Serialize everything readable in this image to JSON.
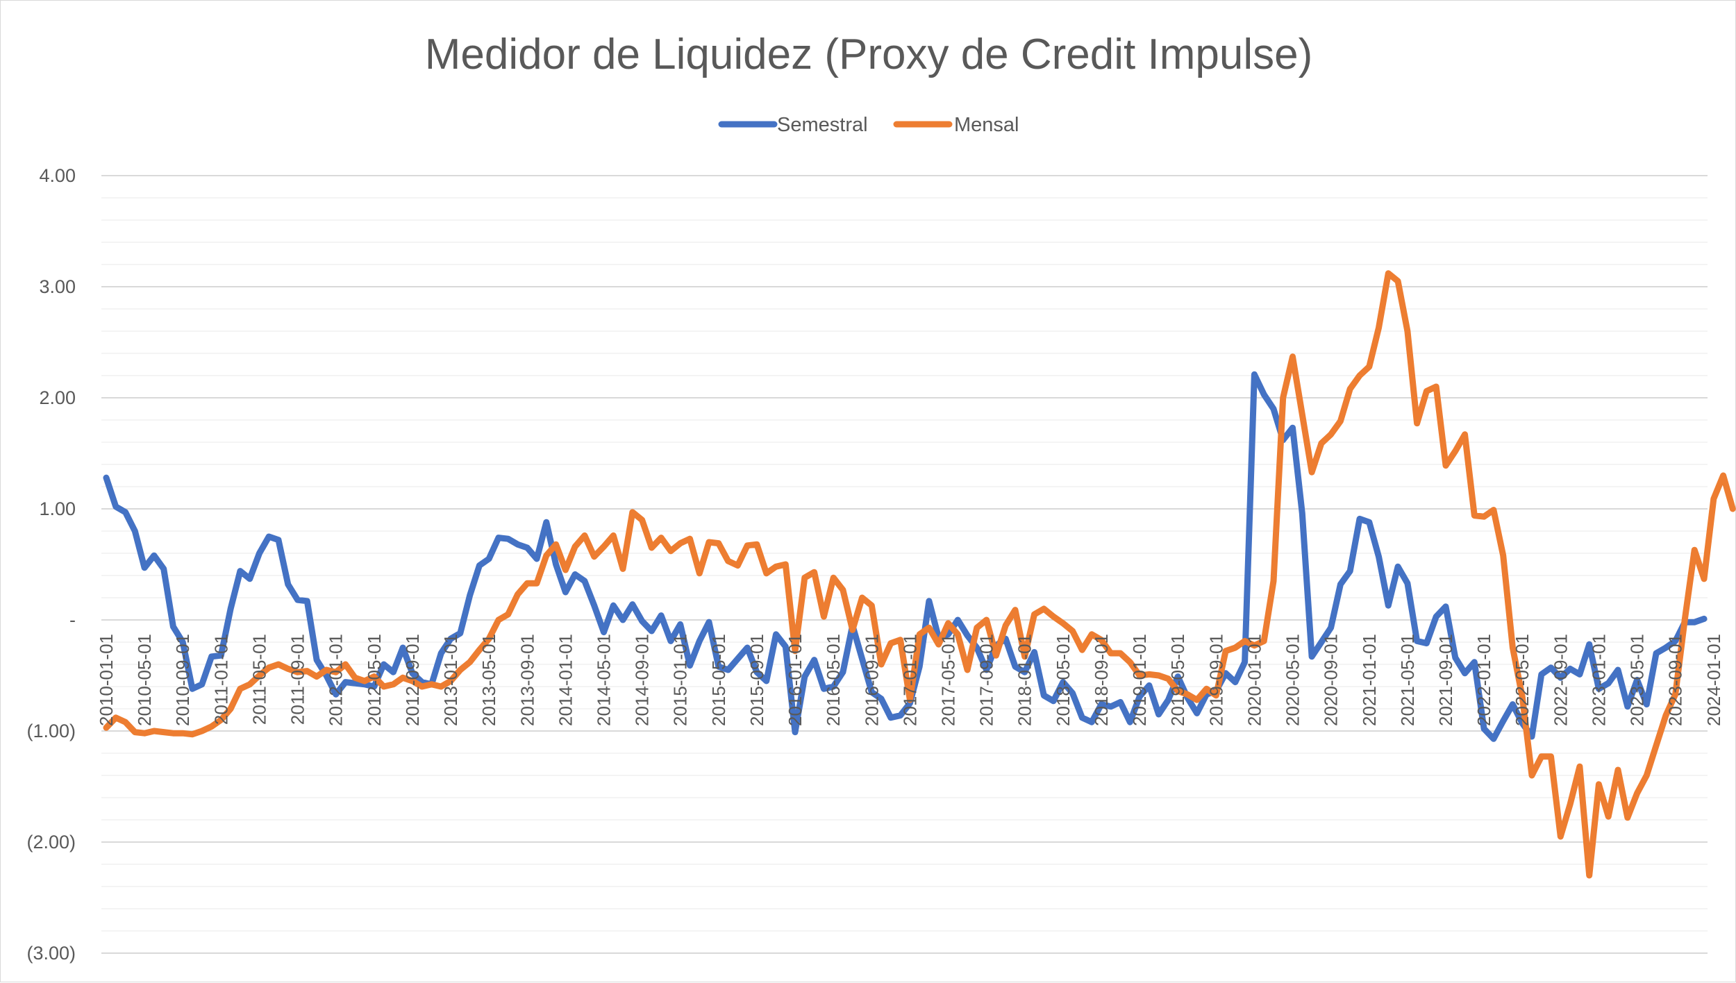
{
  "chart_data": {
    "type": "line",
    "title": "Medidor de Liquidez (Proxy de Credit Impulse)",
    "xlabel": "",
    "ylabel": "",
    "ylim": [
      -3,
      4
    ],
    "y_tick_labels": [
      "(3.00)",
      "(2.00)",
      "(1.00)",
      "-",
      "1.00",
      "2.00",
      "3.00",
      "4.00"
    ],
    "y_tick_values": [
      -3,
      -2,
      -1,
      0,
      1,
      2,
      3,
      4
    ],
    "minor_grid_step": 0.2,
    "grid": true,
    "legend_position": "top",
    "x_tick_labels": [
      "2010-01-01",
      "2010-05-01",
      "2010-09-01",
      "2011-01-01",
      "2011-05-01",
      "2011-09-01",
      "2012-01-01",
      "2012-05-01",
      "2012-09-01",
      "2013-01-01",
      "2013-05-01",
      "2013-09-01",
      "2014-01-01",
      "2014-05-01",
      "2014-09-01",
      "2015-01-01",
      "2015-05-01",
      "2015-09-01",
      "2016-01-01",
      "2016-05-01",
      "2016-09-01",
      "2017-01-01",
      "2017-05-01",
      "2017-09-01",
      "2018-01-01",
      "2018-05-01",
      "2018-09-01",
      "2019-01-01",
      "2019-05-01",
      "2019-09-01",
      "2020-01-01",
      "2020-05-01",
      "2020-09-01",
      "2021-01-01",
      "2021-05-01",
      "2021-09-01",
      "2022-01-01",
      "2022-05-01",
      "2022-09-01",
      "2023-01-01",
      "2023-05-01",
      "2023-09-01",
      "2024-01-01"
    ],
    "x_start": "2010-01-01",
    "x_end": "2024-03-01",
    "frequency": "monthly",
    "series": [
      {
        "name": "Semestral",
        "color": "#4472C4",
        "values": [
          1.28,
          1.02,
          0.97,
          0.8,
          0.47,
          0.58,
          0.46,
          -0.06,
          -0.2,
          -0.62,
          -0.58,
          -0.33,
          -0.32,
          0.1,
          0.44,
          0.37,
          0.6,
          0.75,
          0.72,
          0.32,
          0.18,
          0.17,
          -0.36,
          -0.5,
          -0.67,
          -0.56,
          -0.57,
          -0.58,
          -0.6,
          -0.4,
          -0.47,
          -0.25,
          -0.48,
          -0.56,
          -0.58,
          -0.3,
          -0.17,
          -0.12,
          0.22,
          0.49,
          0.55,
          0.74,
          0.73,
          0.68,
          0.65,
          0.55,
          0.88,
          0.5,
          0.25,
          0.41,
          0.35,
          0.13,
          -0.11,
          0.13,
          0.0,
          0.14,
          -0.01,
          -0.1,
          0.04,
          -0.19,
          -0.04,
          -0.41,
          -0.19,
          -0.02,
          -0.42,
          -0.45,
          -0.35,
          -0.25,
          -0.47,
          -0.55,
          -0.13,
          -0.24,
          -1.01,
          -0.51,
          -0.36,
          -0.62,
          -0.6,
          -0.47,
          -0.05,
          -0.35,
          -0.65,
          -0.71,
          -0.88,
          -0.86,
          -0.75,
          -0.42,
          0.17,
          -0.16,
          -0.13,
          0.0,
          -0.14,
          -0.25,
          -0.45,
          -0.23,
          -0.17,
          -0.42,
          -0.47,
          -0.29,
          -0.68,
          -0.73,
          -0.56,
          -0.66,
          -0.88,
          -0.92,
          -0.76,
          -0.78,
          -0.74,
          -0.92,
          -0.69,
          -0.59,
          -0.85,
          -0.72,
          -0.51,
          -0.7,
          -0.84,
          -0.67,
          -0.64,
          -0.48,
          -0.56,
          -0.38,
          2.21,
          2.03,
          1.9,
          1.62,
          1.73,
          0.96,
          -0.33,
          -0.2,
          -0.07,
          0.32,
          0.44,
          0.91,
          0.88,
          0.57,
          0.13,
          0.48,
          0.33,
          -0.19,
          -0.21,
          0.03,
          0.12,
          -0.34,
          -0.48,
          -0.38,
          -0.98,
          -1.07,
          -0.91,
          -0.76,
          -0.93,
          -1.05,
          -0.49,
          -0.43,
          -0.52,
          -0.44,
          -0.49,
          -0.22,
          -0.62,
          -0.57,
          -0.45,
          -0.78,
          -0.54,
          -0.76,
          -0.3,
          -0.25,
          -0.19,
          -0.02,
          -0.02,
          0.01
        ]
      },
      {
        "name": "Mensal",
        "color": "#ED7D31",
        "values": [
          -0.97,
          -0.88,
          -0.92,
          -1.01,
          -1.02,
          -1.0,
          -1.01,
          -1.02,
          -1.02,
          -1.03,
          -1.0,
          -0.96,
          -0.9,
          -0.8,
          -0.62,
          -0.58,
          -0.5,
          -0.43,
          -0.4,
          -0.44,
          -0.47,
          -0.46,
          -0.51,
          -0.45,
          -0.47,
          -0.4,
          -0.52,
          -0.55,
          -0.51,
          -0.6,
          -0.58,
          -0.52,
          -0.55,
          -0.6,
          -0.58,
          -0.6,
          -0.55,
          -0.45,
          -0.38,
          -0.27,
          -0.17,
          0.0,
          0.05,
          0.23,
          0.33,
          0.33,
          0.58,
          0.68,
          0.45,
          0.66,
          0.76,
          0.57,
          0.66,
          0.76,
          0.46,
          0.97,
          0.9,
          0.65,
          0.74,
          0.62,
          0.69,
          0.73,
          0.42,
          0.7,
          0.69,
          0.53,
          0.49,
          0.67,
          0.68,
          0.42,
          0.48,
          0.5,
          -0.28,
          0.38,
          0.43,
          0.03,
          0.38,
          0.27,
          -0.09,
          0.2,
          0.13,
          -0.4,
          -0.21,
          -0.18,
          -0.72,
          -0.13,
          -0.07,
          -0.22,
          -0.03,
          -0.13,
          -0.45,
          -0.07,
          0.0,
          -0.32,
          -0.05,
          0.09,
          -0.33,
          0.05,
          0.1,
          0.03,
          -0.03,
          -0.1,
          -0.27,
          -0.13,
          -0.18,
          -0.3,
          -0.3,
          -0.38,
          -0.5,
          -0.49,
          -0.5,
          -0.53,
          -0.64,
          -0.67,
          -0.72,
          -0.62,
          -0.68,
          -0.28,
          -0.25,
          -0.19,
          -0.23,
          -0.19,
          0.35,
          2.0,
          2.37,
          1.85,
          1.33,
          1.59,
          1.67,
          1.79,
          2.08,
          2.2,
          2.28,
          2.63,
          3.12,
          3.05,
          2.6,
          1.77,
          2.06,
          2.1,
          1.39,
          1.52,
          1.67,
          0.94,
          0.93,
          0.99,
          0.58,
          -0.25,
          -0.69,
          -1.4,
          -1.23,
          -1.23,
          -1.95,
          -1.66,
          -1.32,
          -2.3,
          -1.48,
          -1.77,
          -1.35,
          -1.78,
          -1.56,
          -1.4,
          -1.13,
          -0.86,
          -0.67,
          0.01,
          0.63,
          0.37,
          1.09,
          1.3,
          1.0
        ]
      }
    ]
  }
}
